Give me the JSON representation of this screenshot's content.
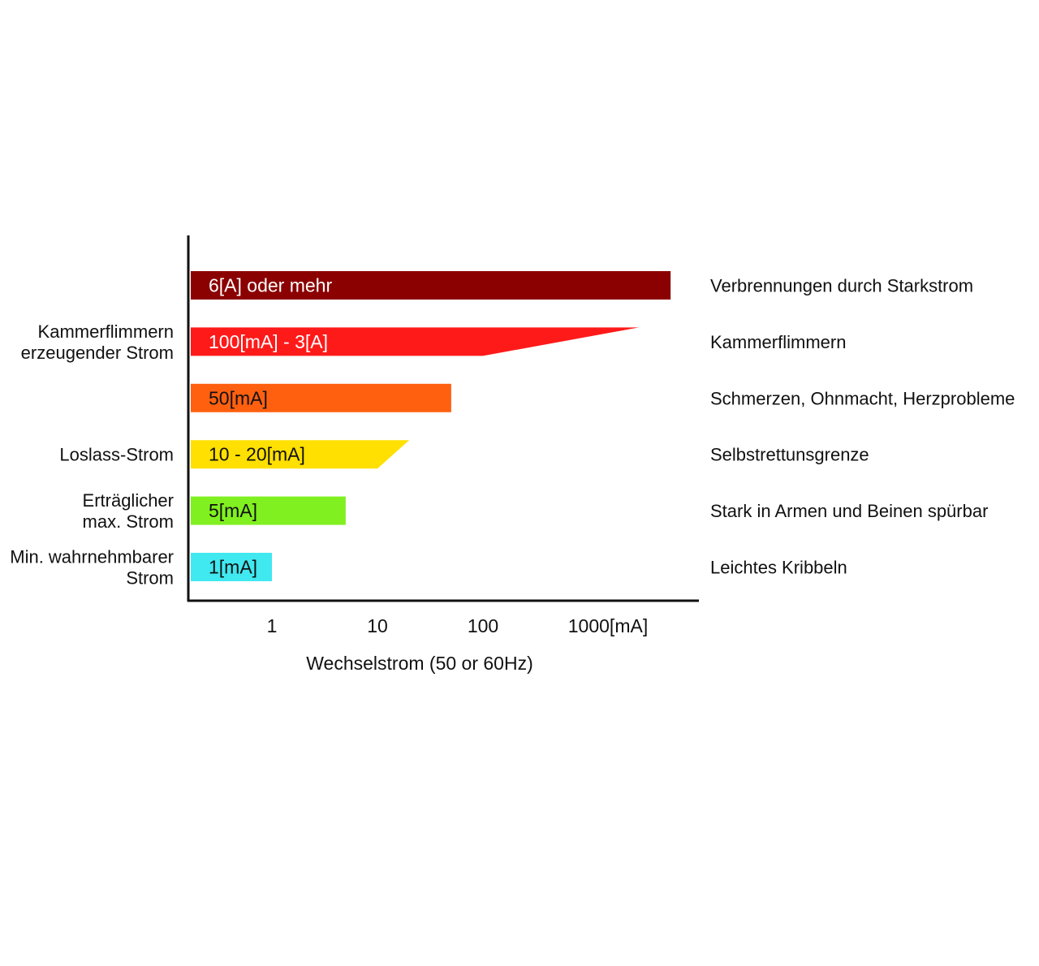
{
  "chart_data": {
    "type": "bar",
    "orientation": "horizontal",
    "xscale": "log",
    "xlabel": "Wechselstrom (50 or 60Hz)",
    "xlim": [
      0.15,
      5000
    ],
    "ticks": [
      {
        "value": 1,
        "label": "1"
      },
      {
        "value": 10,
        "label": "10"
      },
      {
        "value": 100,
        "label": "100"
      },
      {
        "value": 1000,
        "label": "1000[mA]"
      }
    ],
    "grid": false,
    "bars": [
      {
        "label": "6[A] oder mehr",
        "value": 6000,
        "color": "#8b0000",
        "text_color": "#ffffff",
        "left_label": [],
        "right_label": "Verbrennungen durch Starkstrom",
        "shape": "rect"
      },
      {
        "label": "100[mA] - 3[A]",
        "value": 100,
        "value_max": 3000,
        "color": "#ff1a1a",
        "text_color": "#ffffff",
        "left_label": [
          "Kammerflimmern",
          "erzeugender Strom"
        ],
        "right_label": "Kammerflimmern",
        "shape": "taper"
      },
      {
        "label": "50[mA]",
        "value": 50,
        "color": "#ff6010",
        "text_color": "#111111",
        "left_label": [],
        "right_label": "Schmerzen, Ohnmacht, Herzprobleme",
        "shape": "rect"
      },
      {
        "label": "10 - 20[mA]",
        "value": 10,
        "value_max": 20,
        "color": "#ffe000",
        "text_color": "#111111",
        "left_label": [
          "Loslass-Strom"
        ],
        "right_label": "Selbstrettunsgrenze",
        "shape": "taper"
      },
      {
        "label": "5[mA]",
        "value": 5,
        "color": "#80f020",
        "text_color": "#111111",
        "left_label": [
          "Erträglicher",
          "max. Strom"
        ],
        "right_label": "Stark in Armen und Beinen spürbar",
        "shape": "rect"
      },
      {
        "label": "1[mA]",
        "value": 1,
        "color": "#40e8f0",
        "text_color": "#111111",
        "left_label": [
          "Min. wahrnehmbarer",
          "Strom"
        ],
        "right_label": "Leichtes Kribbeln",
        "shape": "rect"
      }
    ]
  }
}
